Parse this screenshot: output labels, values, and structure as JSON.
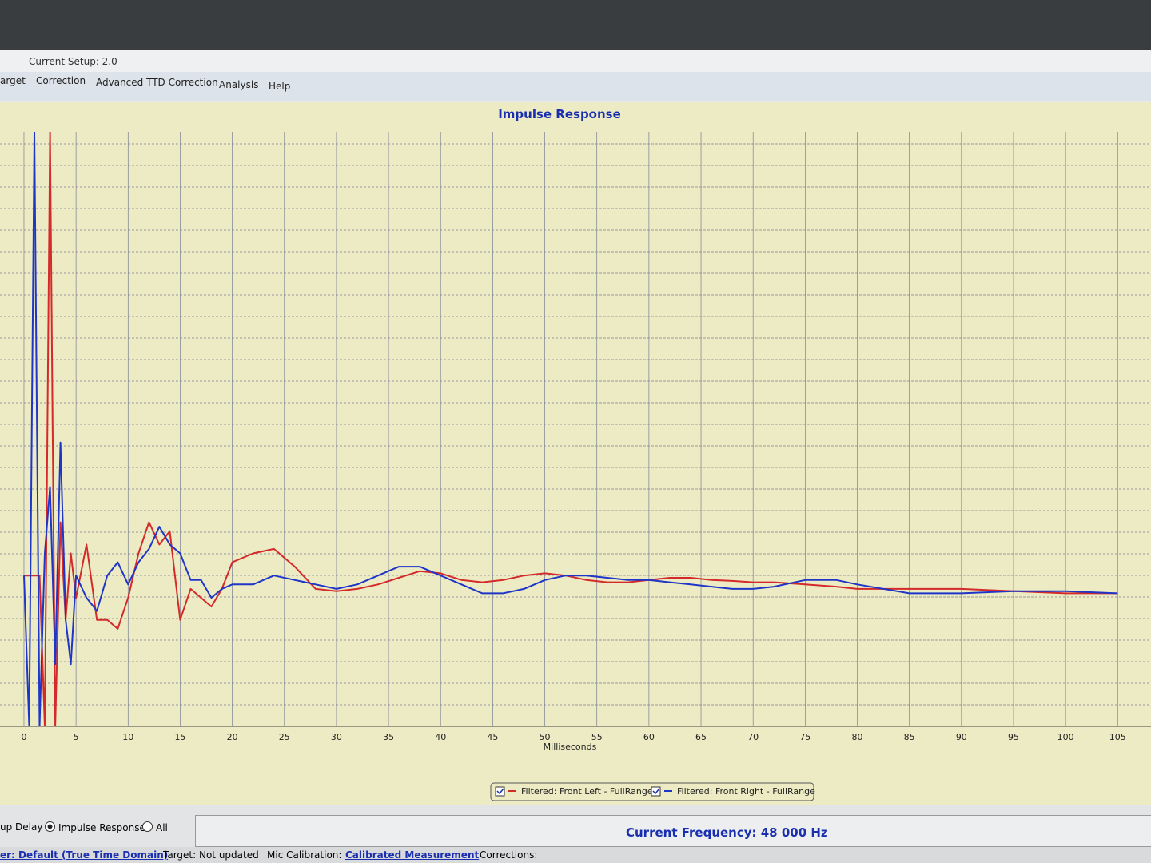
{
  "window": {
    "setup": "Current Setup: 2.0",
    "menu": [
      "arget",
      "Correction",
      "Advanced TTD Correction",
      "Analysis",
      "Help"
    ]
  },
  "chart_data": {
    "type": "line",
    "title": "Impulse Response",
    "xlabel": "Milliseconds",
    "xlim": [
      -2.3,
      108.2
    ],
    "ylim": [
      -0.34,
      1
    ],
    "xticks": [
      0,
      5,
      10,
      15,
      20,
      25,
      30,
      35,
      40,
      45,
      50,
      55,
      60,
      65,
      70,
      75,
      80,
      85,
      90,
      95,
      100,
      105
    ],
    "grid": true,
    "x": [
      0,
      0.5,
      1,
      1.5,
      2,
      2.5,
      3,
      3.5,
      4,
      4.5,
      5,
      6,
      7,
      8,
      9,
      10,
      11,
      12,
      13,
      14,
      15,
      16,
      17,
      18,
      19,
      20,
      22,
      24,
      26,
      28,
      30,
      32,
      34,
      36,
      38,
      40,
      42,
      44,
      46,
      48,
      50,
      52,
      54,
      56,
      58,
      60,
      62,
      64,
      66,
      68,
      70,
      72,
      75,
      78,
      80,
      85,
      90,
      95,
      100,
      105
    ],
    "series": [
      {
        "name": "Filtered: Front Left - FullRange",
        "color": "#d42a2a",
        "values": [
          0,
          0,
          0,
          0,
          -0.34,
          1,
          -0.34,
          0.12,
          -0.1,
          0.05,
          -0.05,
          0.07,
          -0.1,
          -0.1,
          -0.12,
          -0.05,
          0.05,
          0.12,
          0.07,
          0.1,
          -0.1,
          -0.03,
          -0.05,
          -0.07,
          -0.03,
          0.03,
          0.05,
          0.06,
          0.02,
          -0.03,
          -0.035,
          -0.03,
          -0.02,
          -0.005,
          0.01,
          0.005,
          -0.01,
          -0.015,
          -0.01,
          0,
          0.005,
          0,
          -0.01,
          -0.015,
          -0.015,
          -0.01,
          -0.005,
          -0.005,
          -0.01,
          -0.012,
          -0.015,
          -0.015,
          -0.02,
          -0.025,
          -0.03,
          -0.03,
          -0.03,
          -0.035,
          -0.04,
          -0.04
        ]
      },
      {
        "name": "Filtered: Front Right - FullRange",
        "color": "#1f35c8",
        "values": [
          0,
          -0.34,
          1,
          -0.34,
          0.05,
          0.2,
          -0.2,
          0.3,
          -0.1,
          -0.2,
          0,
          -0.05,
          -0.08,
          0,
          0.03,
          -0.02,
          0.03,
          0.06,
          0.11,
          0.07,
          0.05,
          -0.01,
          -0.01,
          -0.05,
          -0.03,
          -0.02,
          -0.02,
          0,
          -0.01,
          -0.02,
          -0.03,
          -0.02,
          0,
          0.02,
          0.02,
          0,
          -0.02,
          -0.04,
          -0.04,
          -0.03,
          -0.01,
          0,
          0,
          -0.005,
          -0.01,
          -0.01,
          -0.015,
          -0.02,
          -0.025,
          -0.03,
          -0.03,
          -0.025,
          -0.01,
          -0.01,
          -0.02,
          -0.04,
          -0.04,
          -0.035,
          -0.035,
          -0.04
        ]
      }
    ]
  },
  "bottom": {
    "delay": "up Delay",
    "impulse": "Impulse Response",
    "all": "All",
    "frequency": "Current Frequency: 48 000 Hz"
  },
  "status": {
    "speaker": "er: Default (True Time Domain)",
    "target": "Target: Not updated",
    "mic": "Mic Calibration:",
    "calibrated": "Calibrated Measurement",
    "corrections": "Corrections:"
  }
}
